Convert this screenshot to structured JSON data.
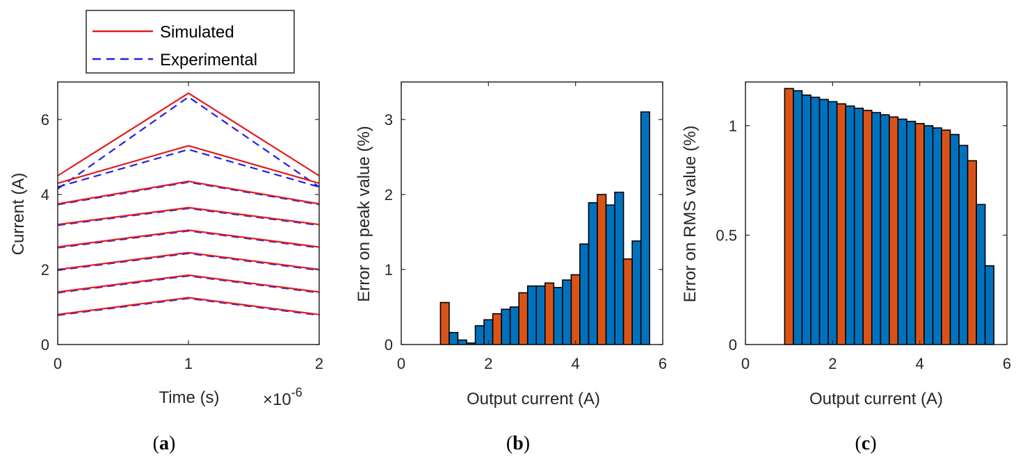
{
  "colors": {
    "simulated": "#e41a1c",
    "experimental": "#1f1fe6",
    "bar_blue": "#0072bd",
    "bar_orange": "#d95319"
  },
  "chart_data": [
    {
      "type": "line",
      "caption_prefix": "(",
      "caption_letter": "a",
      "caption_suffix": ")",
      "xlabel": "Time (s)",
      "exponent_label": "×10",
      "exponent_sup": "-6",
      "ylabel": "Current (A)",
      "xlim": [
        0,
        2
      ],
      "ylim": [
        0,
        7
      ],
      "xticks": [
        "0",
        "1",
        "2"
      ],
      "yticks": [
        "0",
        "2",
        "4",
        "6"
      ],
      "legend": {
        "position": "top-outside",
        "entries": [
          "Simulated",
          "Experimental"
        ]
      },
      "series": [
        {
          "name": "Simulated",
          "x": [
            0,
            1,
            2
          ],
          "y": [
            [
              0.8,
              1.25,
              0.8
            ],
            [
              1.4,
              1.85,
              1.4
            ],
            [
              2.0,
              2.45,
              2.0
            ],
            [
              2.6,
              3.05,
              2.6
            ],
            [
              3.2,
              3.65,
              3.2
            ],
            [
              3.75,
              4.35,
              3.75
            ],
            [
              4.3,
              5.3,
              4.3
            ],
            [
              4.5,
              6.7,
              4.5
            ]
          ]
        },
        {
          "name": "Experimental",
          "x": [
            0,
            1,
            2
          ],
          "y": [
            [
              0.78,
              1.23,
              0.78
            ],
            [
              1.38,
              1.83,
              1.38
            ],
            [
              1.98,
              2.43,
              1.98
            ],
            [
              2.58,
              3.03,
              2.58
            ],
            [
              3.18,
              3.63,
              3.18
            ],
            [
              3.73,
              4.33,
              3.73
            ],
            [
              4.2,
              5.2,
              4.2
            ],
            [
              4.15,
              6.6,
              4.2
            ]
          ]
        }
      ]
    },
    {
      "type": "bar",
      "caption_prefix": "(",
      "caption_letter": "b",
      "caption_suffix": ")",
      "xlabel": "Output current (A)",
      "ylabel": "Error on peak value (%)",
      "xlim": [
        0,
        6
      ],
      "ylim": [
        0,
        3.5
      ],
      "xticks": [
        "0",
        "2",
        "4",
        "6"
      ],
      "yticks": [
        "0",
        "1",
        "2",
        "3"
      ],
      "bar_width": 0.2,
      "x": [
        1.0,
        1.2,
        1.4,
        1.6,
        1.8,
        2.0,
        2.2,
        2.4,
        2.6,
        2.8,
        3.0,
        3.2,
        3.4,
        3.6,
        3.8,
        4.0,
        4.2,
        4.4,
        4.6,
        4.8,
        5.0,
        5.2,
        5.4,
        5.6
      ],
      "values": [
        0.56,
        0.16,
        0.06,
        0.02,
        0.25,
        0.33,
        0.41,
        0.47,
        0.5,
        0.69,
        0.78,
        0.78,
        0.82,
        0.76,
        0.86,
        0.93,
        1.34,
        1.89,
        2.0,
        1.86,
        2.03,
        1.14,
        1.38,
        3.1
      ],
      "orange_indices": [
        0,
        6,
        9,
        12,
        15,
        18,
        21
      ]
    },
    {
      "type": "bar",
      "caption_prefix": "(",
      "caption_letter": "c",
      "caption_suffix": ")",
      "xlabel": "Output current (A)",
      "ylabel": "Error on RMS value (%)",
      "xlim": [
        0,
        6
      ],
      "ylim": [
        0,
        1.2
      ],
      "xticks": [
        "0",
        "2",
        "4",
        "6"
      ],
      "yticks": [
        "0",
        "0.5",
        "1"
      ],
      "bar_width": 0.2,
      "x": [
        1.0,
        1.2,
        1.4,
        1.6,
        1.8,
        2.0,
        2.2,
        2.4,
        2.6,
        2.8,
        3.0,
        3.2,
        3.4,
        3.6,
        3.8,
        4.0,
        4.2,
        4.4,
        4.6,
        4.8,
        5.0,
        5.2,
        5.4,
        5.6
      ],
      "values": [
        1.17,
        1.16,
        1.14,
        1.13,
        1.12,
        1.11,
        1.1,
        1.09,
        1.08,
        1.07,
        1.06,
        1.05,
        1.04,
        1.03,
        1.02,
        1.01,
        1.0,
        0.99,
        0.98,
        0.96,
        0.91,
        0.84,
        0.64,
        0.36
      ],
      "orange_indices": [
        0,
        6,
        9,
        12,
        15,
        18,
        21
      ]
    }
  ]
}
